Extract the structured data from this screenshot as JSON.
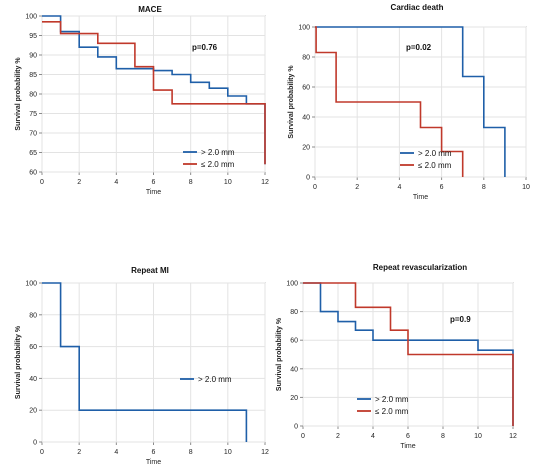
{
  "chart_data": [
    {
      "type": "line",
      "step": true,
      "title": "MACE",
      "xlabel": "Time",
      "ylabel": "Survival probability %",
      "xlim": [
        0,
        12
      ],
      "ylim": [
        60,
        100
      ],
      "xticks": [
        "0",
        "2",
        "4",
        "6",
        "8",
        "10",
        "12"
      ],
      "yticks": [
        "60",
        "65",
        "70",
        "75",
        "80",
        "85",
        "90",
        "95",
        "100"
      ],
      "grid": true,
      "legend_position": "bottom-center",
      "annotation": "p=0.76",
      "series": [
        {
          "name": "> 2.0 mm",
          "color": "#1f5fa8",
          "x": [
            0,
            1,
            1,
            2,
            2,
            3,
            3,
            4,
            4,
            5,
            5,
            6,
            6,
            7,
            7,
            8,
            8,
            9,
            9,
            10,
            10,
            11,
            11,
            12,
            12
          ],
          "y": [
            100,
            100,
            96,
            96,
            92,
            92,
            89.5,
            89.5,
            86.5,
            86.5,
            86.5,
            86.5,
            86,
            86,
            85,
            85,
            83,
            83,
            81.5,
            81.5,
            79.5,
            79.5,
            77.5,
            77.5,
            62
          ]
        },
        {
          "name": "≤ 2.0 mm",
          "color": "#c0392b",
          "x": [
            0,
            1,
            1,
            3,
            3,
            5,
            5,
            6,
            6,
            7,
            7,
            12,
            12
          ],
          "y": [
            98.5,
            98.5,
            95.5,
            95.5,
            93,
            93,
            87,
            87,
            81,
            81,
            77.5,
            77.5,
            62
          ]
        }
      ]
    },
    {
      "type": "line",
      "step": true,
      "title": "Cardiac death",
      "xlabel": "Time",
      "ylabel": "Survival probability %",
      "xlim": [
        0,
        10
      ],
      "ylim": [
        0,
        100
      ],
      "xticks": [
        "0",
        "2",
        "4",
        "6",
        "8",
        "10"
      ],
      "yticks": [
        "0",
        "20",
        "40",
        "60",
        "80",
        "100"
      ],
      "grid": true,
      "legend_position": "bottom-center",
      "annotation": "p=0.02",
      "series": [
        {
          "name": "> 2.0 mm",
          "color": "#1f5fa8",
          "x": [
            0,
            7,
            7,
            8,
            8,
            9,
            9
          ],
          "y": [
            100,
            100,
            67,
            67,
            33,
            33,
            0
          ]
        },
        {
          "name": "≤ 2.0 mm",
          "color": "#c0392b",
          "x": [
            0,
            0.05,
            0.05,
            1,
            1,
            5,
            5,
            6,
            6,
            7,
            7
          ],
          "y": [
            100,
            100,
            83,
            83,
            50,
            50,
            33,
            33,
            17,
            17,
            0
          ]
        }
      ]
    },
    {
      "type": "line",
      "step": true,
      "title": "Repeat MI",
      "xlabel": "Time",
      "ylabel": "Survival probability %",
      "xlim": [
        0,
        12
      ],
      "ylim": [
        0,
        100
      ],
      "xticks": [
        "0",
        "2",
        "4",
        "6",
        "8",
        "10",
        "12"
      ],
      "yticks": [
        "0",
        "20",
        "40",
        "60",
        "80",
        "100"
      ],
      "grid": true,
      "legend_position": "center-right",
      "annotation": "",
      "series": [
        {
          "name": "> 2.0 mm",
          "color": "#1f5fa8",
          "x": [
            0,
            1,
            1,
            2,
            2,
            11,
            11
          ],
          "y": [
            100,
            100,
            60,
            60,
            20,
            20,
            0
          ]
        }
      ]
    },
    {
      "type": "line",
      "step": true,
      "title": "Repeat revascularization",
      "xlabel": "Time",
      "ylabel": "Survival probability %",
      "xlim": [
        0,
        12
      ],
      "ylim": [
        0,
        100
      ],
      "xticks": [
        "0",
        "2",
        "4",
        "6",
        "8",
        "10",
        "12"
      ],
      "yticks": [
        "0",
        "20",
        "40",
        "60",
        "80",
        "100"
      ],
      "grid": true,
      "legend_position": "bottom-center",
      "annotation": "p=0.9",
      "series": [
        {
          "name": "> 2.0 mm",
          "color": "#1f5fa8",
          "x": [
            0,
            1,
            1,
            2,
            2,
            3,
            3,
            4,
            4,
            10,
            10,
            12,
            12
          ],
          "y": [
            100,
            100,
            80,
            80,
            73,
            73,
            67,
            67,
            60,
            60,
            53,
            53,
            0
          ]
        },
        {
          "name": "≤ 2.0 mm",
          "color": "#c0392b",
          "x": [
            0,
            3,
            3,
            5,
            5,
            6,
            6,
            12,
            12
          ],
          "y": [
            100,
            100,
            83,
            83,
            67,
            67,
            50,
            50,
            0
          ]
        }
      ]
    }
  ]
}
